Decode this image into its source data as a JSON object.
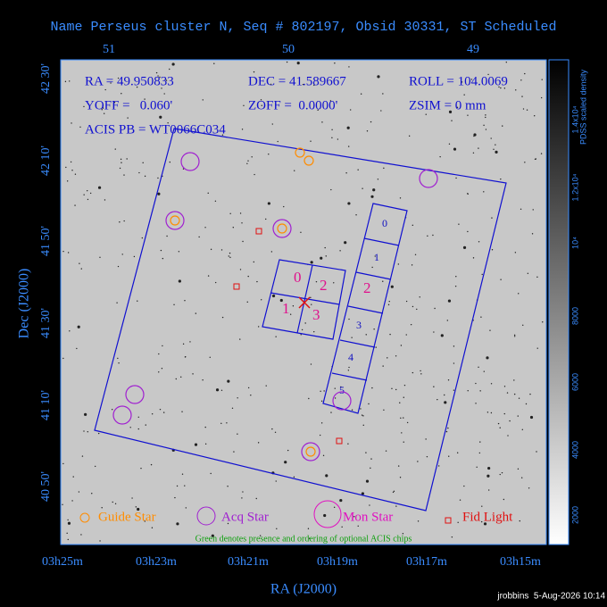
{
  "title": "Name Perseus cluster N, Seq # 802197, Obsid 30331, ST Scheduled",
  "info": {
    "ra": "RA = 49.950833",
    "dec": "DEC = 41.589667",
    "roll": "ROLL = 104.0069",
    "yoff": "YOFF =   0.060'",
    "zoff": "ZOFF =  0.0000'",
    "zsim": "ZSIM = 0 mm",
    "acis": "ACIS PB = WT0066C034"
  },
  "axes": {
    "x_label": "RA (J2000)",
    "y_label": "Dec (J2000)",
    "top_ticks": [
      "51",
      "50",
      "49"
    ],
    "left_ticks": [
      "42 30'",
      "42 10'",
      "41 50'",
      "41 30'",
      "41 10'",
      "40 50'"
    ],
    "bottom_ticks": [
      "03h25m",
      "03h23m",
      "03h21m",
      "03h19m",
      "03h17m",
      "03h15m"
    ]
  },
  "colorbar": {
    "title": "PDSS scaled density",
    "ticks": [
      "2000",
      "4000",
      "6000",
      "8000",
      "10⁴",
      "1.2x10⁴",
      "1.4x10⁴"
    ]
  },
  "chips": {
    "acis_i": [
      "0",
      "2",
      "1",
      "3"
    ],
    "acis_s": [
      "0",
      "1",
      "2",
      "3",
      "4",
      "5"
    ]
  },
  "legend": {
    "guide": "Guide Star",
    "acq": "Acq Star",
    "mon": "Mon Star",
    "fid": "Fid Light"
  },
  "note": "Green denotes presence and ordering of optional ACIS chips",
  "footer": "jrobbins  5-Aug-2026 10:14"
}
